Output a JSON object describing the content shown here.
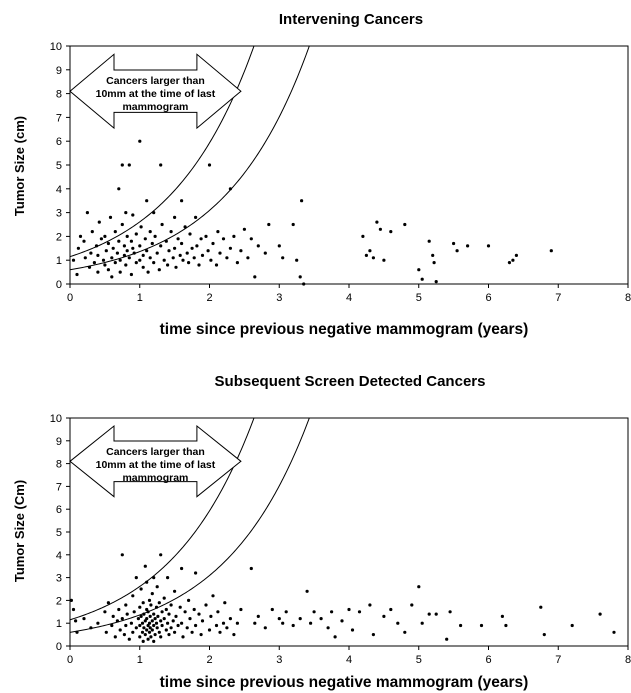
{
  "chart_data": [
    {
      "type": "scatter",
      "title": "Intervening Cancers",
      "xlabel": "time since previous negative mammogram (years)",
      "ylabel": "Tumor Size (cm)",
      "xlim": [
        0,
        8
      ],
      "ylim": [
        0,
        10
      ],
      "xticks": [
        "0",
        "1",
        "2",
        "3",
        "4",
        "5",
        "6",
        "7",
        "8"
      ],
      "yticks": [
        "0",
        "1",
        "2",
        "3",
        "4",
        "5",
        "6",
        "7",
        "8",
        "9",
        "10"
      ],
      "grid": false,
      "annotation": [
        "Cancers larger than",
        "10mm at the time of last",
        "mammogram"
      ],
      "annotation_range": [
        0,
        2.45
      ],
      "curves": [
        {
          "a": 1.15,
          "k": 0.82
        },
        {
          "a": 0.6,
          "k": 0.82
        }
      ],
      "points": [
        [
          0.05,
          1.0
        ],
        [
          0.1,
          0.4
        ],
        [
          0.12,
          1.5
        ],
        [
          0.15,
          2.0
        ],
        [
          0.2,
          1.8
        ],
        [
          0.22,
          1.1
        ],
        [
          0.25,
          3.0
        ],
        [
          0.28,
          0.7
        ],
        [
          0.3,
          1.3
        ],
        [
          0.32,
          2.2
        ],
        [
          0.35,
          0.9
        ],
        [
          0.38,
          1.6
        ],
        [
          0.4,
          1.2
        ],
        [
          0.4,
          0.5
        ],
        [
          0.42,
          2.6
        ],
        [
          0.45,
          1.9
        ],
        [
          0.48,
          1.0
        ],
        [
          0.5,
          0.8
        ],
        [
          0.5,
          2.0
        ],
        [
          0.52,
          1.4
        ],
        [
          0.55,
          0.6
        ],
        [
          0.55,
          1.7
        ],
        [
          0.58,
          2.8
        ],
        [
          0.6,
          1.1
        ],
        [
          0.6,
          0.3
        ],
        [
          0.62,
          1.5
        ],
        [
          0.65,
          2.2
        ],
        [
          0.65,
          0.9
        ],
        [
          0.68,
          1.3
        ],
        [
          0.7,
          4.0
        ],
        [
          0.7,
          1.8
        ],
        [
          0.72,
          0.5
        ],
        [
          0.72,
          1.0
        ],
        [
          0.75,
          5.0
        ],
        [
          0.75,
          2.5
        ],
        [
          0.78,
          1.6
        ],
        [
          0.78,
          1.2
        ],
        [
          0.8,
          3.0
        ],
        [
          0.8,
          0.8
        ],
        [
          0.82,
          2.0
        ],
        [
          0.82,
          1.4
        ],
        [
          0.85,
          5.0
        ],
        [
          0.85,
          1.1
        ],
        [
          0.88,
          1.8
        ],
        [
          0.88,
          0.4
        ],
        [
          0.9,
          2.9
        ],
        [
          0.9,
          1.5
        ],
        [
          0.92,
          1.3
        ],
        [
          0.95,
          0.9
        ],
        [
          0.95,
          2.1
        ],
        [
          1.0,
          6.0
        ],
        [
          1.0,
          1.6
        ],
        [
          1.0,
          1.0
        ],
        [
          1.02,
          2.4
        ],
        [
          1.05,
          0.7
        ],
        [
          1.05,
          1.2
        ],
        [
          1.08,
          1.9
        ],
        [
          1.1,
          3.5
        ],
        [
          1.1,
          1.4
        ],
        [
          1.12,
          0.5
        ],
        [
          1.15,
          2.2
        ],
        [
          1.15,
          1.1
        ],
        [
          1.18,
          1.7
        ],
        [
          1.2,
          3.0
        ],
        [
          1.2,
          0.9
        ],
        [
          1.22,
          2.0
        ],
        [
          1.25,
          1.3
        ],
        [
          1.28,
          0.6
        ],
        [
          1.3,
          5.0
        ],
        [
          1.3,
          1.6
        ],
        [
          1.32,
          2.5
        ],
        [
          1.35,
          1.0
        ],
        [
          1.38,
          1.8
        ],
        [
          1.4,
          0.8
        ],
        [
          1.42,
          1.4
        ],
        [
          1.45,
          2.2
        ],
        [
          1.48,
          1.1
        ],
        [
          1.5,
          2.8
        ],
        [
          1.5,
          1.5
        ],
        [
          1.52,
          0.7
        ],
        [
          1.55,
          1.9
        ],
        [
          1.58,
          1.2
        ],
        [
          1.6,
          3.5
        ],
        [
          1.6,
          1.7
        ],
        [
          1.62,
          1.0
        ],
        [
          1.65,
          2.4
        ],
        [
          1.68,
          1.3
        ],
        [
          1.7,
          0.9
        ],
        [
          1.72,
          2.1
        ],
        [
          1.75,
          1.5
        ],
        [
          1.78,
          1.1
        ],
        [
          1.8,
          2.8
        ],
        [
          1.82,
          1.6
        ],
        [
          1.85,
          0.8
        ],
        [
          1.88,
          1.9
        ],
        [
          1.9,
          1.2
        ],
        [
          1.95,
          2.0
        ],
        [
          1.98,
          1.4
        ],
        [
          2.0,
          5.0
        ],
        [
          2.02,
          1.0
        ],
        [
          2.05,
          1.7
        ],
        [
          2.1,
          0.8
        ],
        [
          2.12,
          2.2
        ],
        [
          2.15,
          1.3
        ],
        [
          2.2,
          1.9
        ],
        [
          2.25,
          1.1
        ],
        [
          2.3,
          4.0
        ],
        [
          2.3,
          1.5
        ],
        [
          2.35,
          2.0
        ],
        [
          2.4,
          0.9
        ],
        [
          2.45,
          1.4
        ],
        [
          2.5,
          2.3
        ],
        [
          2.55,
          1.1
        ],
        [
          2.6,
          1.9
        ],
        [
          2.65,
          0.3
        ],
        [
          2.7,
          1.6
        ],
        [
          2.8,
          1.3
        ],
        [
          2.85,
          2.5
        ],
        [
          3.0,
          1.6
        ],
        [
          3.05,
          1.1
        ],
        [
          3.2,
          2.5
        ],
        [
          3.25,
          1.0
        ],
        [
          3.3,
          0.3
        ],
        [
          3.32,
          3.5
        ],
        [
          3.35,
          0.0
        ],
        [
          4.2,
          2.0
        ],
        [
          4.25,
          1.2
        ],
        [
          4.3,
          1.4
        ],
        [
          4.35,
          1.1
        ],
        [
          4.4,
          2.6
        ],
        [
          4.45,
          2.3
        ],
        [
          4.5,
          1.0
        ],
        [
          4.6,
          2.2
        ],
        [
          4.8,
          2.5
        ],
        [
          5.0,
          0.6
        ],
        [
          5.05,
          0.2
        ],
        [
          5.15,
          1.8
        ],
        [
          5.2,
          1.2
        ],
        [
          5.22,
          0.9
        ],
        [
          5.25,
          0.1
        ],
        [
          5.5,
          1.7
        ],
        [
          5.55,
          1.4
        ],
        [
          5.7,
          1.6
        ],
        [
          6.0,
          1.6
        ],
        [
          6.3,
          0.9
        ],
        [
          6.35,
          1.0
        ],
        [
          6.4,
          1.2
        ],
        [
          6.9,
          1.4
        ]
      ]
    },
    {
      "type": "scatter",
      "title": "Subsequent Screen Detected Cancers",
      "xlabel": "time since previous negative mammogram (years)",
      "ylabel": "Tumor Size (Cm)",
      "xlim": [
        0,
        8
      ],
      "ylim": [
        0,
        10
      ],
      "xticks": [
        "0",
        "1",
        "2",
        "3",
        "4",
        "5",
        "6",
        "7",
        "8"
      ],
      "yticks": [
        "0",
        "1",
        "2",
        "3",
        "4",
        "5",
        "6",
        "7",
        "8",
        "9",
        "10"
      ],
      "grid": false,
      "annotation": [
        "Cancers larger than",
        "10mm at the time of last",
        "mammogram"
      ],
      "annotation_range": [
        0,
        2.45
      ],
      "curves": [
        {
          "a": 1.15,
          "k": 0.82
        },
        {
          "a": 0.6,
          "k": 0.82
        }
      ],
      "points": [
        [
          0.02,
          2.0
        ],
        [
          0.05,
          1.6
        ],
        [
          0.08,
          1.1
        ],
        [
          0.1,
          0.6
        ],
        [
          0.2,
          1.2
        ],
        [
          0.3,
          0.8
        ],
        [
          0.4,
          1.0
        ],
        [
          0.5,
          1.5
        ],
        [
          0.52,
          0.6
        ],
        [
          0.55,
          1.9
        ],
        [
          0.6,
          0.9
        ],
        [
          0.62,
          1.3
        ],
        [
          0.65,
          0.4
        ],
        [
          0.68,
          1.1
        ],
        [
          0.7,
          1.6
        ],
        [
          0.72,
          0.7
        ],
        [
          0.75,
          4.0
        ],
        [
          0.75,
          1.2
        ],
        [
          0.78,
          0.5
        ],
        [
          0.8,
          0.9
        ],
        [
          0.8,
          1.8
        ],
        [
          0.82,
          1.4
        ],
        [
          0.85,
          0.3
        ],
        [
          0.88,
          1.0
        ],
        [
          0.9,
          2.2
        ],
        [
          0.9,
          0.6
        ],
        [
          0.92,
          1.5
        ],
        [
          0.95,
          0.8
        ],
        [
          0.95,
          3.0
        ],
        [
          0.98,
          1.2
        ],
        [
          1.0,
          0.4
        ],
        [
          1.0,
          1.7
        ],
        [
          1.0,
          0.9
        ],
        [
          1.02,
          1.3
        ],
        [
          1.02,
          2.5
        ],
        [
          1.04,
          0.6
        ],
        [
          1.04,
          1.0
        ],
        [
          1.05,
          1.9
        ],
        [
          1.05,
          0.2
        ],
        [
          1.06,
          1.4
        ],
        [
          1.06,
          0.8
        ],
        [
          1.08,
          1.1
        ],
        [
          1.08,
          3.5
        ],
        [
          1.08,
          0.5
        ],
        [
          1.1,
          1.6
        ],
        [
          1.1,
          0.7
        ],
        [
          1.1,
          1.2
        ],
        [
          1.1,
          2.8
        ],
        [
          1.12,
          0.9
        ],
        [
          1.12,
          0.3
        ],
        [
          1.12,
          1.5
        ],
        [
          1.14,
          1.0
        ],
        [
          1.14,
          2.0
        ],
        [
          1.14,
          0.6
        ],
        [
          1.15,
          1.3
        ],
        [
          1.15,
          0.8
        ],
        [
          1.16,
          1.8
        ],
        [
          1.16,
          0.4
        ],
        [
          1.18,
          1.1
        ],
        [
          1.18,
          2.3
        ],
        [
          1.18,
          0.7
        ],
        [
          1.2,
          1.4
        ],
        [
          1.2,
          0.9
        ],
        [
          1.2,
          3.0
        ],
        [
          1.2,
          0.2
        ],
        [
          1.22,
          1.2
        ],
        [
          1.22,
          0.5
        ],
        [
          1.24,
          1.7
        ],
        [
          1.24,
          1.0
        ],
        [
          1.25,
          0.8
        ],
        [
          1.25,
          2.6
        ],
        [
          1.26,
          1.3
        ],
        [
          1.28,
          0.6
        ],
        [
          1.28,
          1.9
        ],
        [
          1.3,
          1.1
        ],
        [
          1.3,
          4.0
        ],
        [
          1.3,
          0.4
        ],
        [
          1.32,
          1.5
        ],
        [
          1.32,
          0.9
        ],
        [
          1.35,
          1.2
        ],
        [
          1.35,
          2.1
        ],
        [
          1.38,
          0.7
        ],
        [
          1.38,
          1.6
        ],
        [
          1.4,
          1.0
        ],
        [
          1.4,
          3.0
        ],
        [
          1.42,
          0.5
        ],
        [
          1.42,
          1.4
        ],
        [
          1.45,
          1.8
        ],
        [
          1.45,
          0.8
        ],
        [
          1.48,
          1.1
        ],
        [
          1.5,
          2.4
        ],
        [
          1.5,
          0.6
        ],
        [
          1.52,
          1.3
        ],
        [
          1.55,
          0.9
        ],
        [
          1.58,
          1.7
        ],
        [
          1.6,
          3.4
        ],
        [
          1.6,
          1.0
        ],
        [
          1.62,
          0.4
        ],
        [
          1.65,
          1.5
        ],
        [
          1.68,
          0.8
        ],
        [
          1.7,
          2.0
        ],
        [
          1.72,
          1.2
        ],
        [
          1.75,
          0.6
        ],
        [
          1.78,
          1.6
        ],
        [
          1.8,
          3.2
        ],
        [
          1.8,
          0.9
        ],
        [
          1.85,
          1.4
        ],
        [
          1.88,
          0.5
        ],
        [
          1.9,
          1.1
        ],
        [
          1.95,
          1.8
        ],
        [
          2.0,
          0.7
        ],
        [
          2.02,
          1.3
        ],
        [
          2.05,
          2.2
        ],
        [
          2.1,
          0.9
        ],
        [
          2.12,
          1.5
        ],
        [
          2.15,
          0.6
        ],
        [
          2.2,
          1.0
        ],
        [
          2.22,
          1.9
        ],
        [
          2.25,
          0.8
        ],
        [
          2.3,
          1.2
        ],
        [
          2.35,
          0.5
        ],
        [
          2.4,
          1.0
        ],
        [
          2.45,
          1.6
        ],
        [
          2.6,
          3.4
        ],
        [
          2.65,
          1.0
        ],
        [
          2.7,
          1.3
        ],
        [
          2.8,
          0.8
        ],
        [
          2.9,
          1.6
        ],
        [
          3.0,
          1.2
        ],
        [
          3.05,
          1.0
        ],
        [
          3.1,
          1.5
        ],
        [
          3.2,
          0.9
        ],
        [
          3.3,
          1.2
        ],
        [
          3.4,
          2.4
        ],
        [
          3.45,
          1.0
        ],
        [
          3.5,
          1.5
        ],
        [
          3.6,
          1.2
        ],
        [
          3.7,
          0.8
        ],
        [
          3.75,
          1.5
        ],
        [
          3.8,
          0.4
        ],
        [
          3.9,
          1.1
        ],
        [
          4.0,
          1.6
        ],
        [
          4.05,
          0.7
        ],
        [
          4.15,
          1.5
        ],
        [
          4.3,
          1.8
        ],
        [
          4.35,
          0.5
        ],
        [
          4.5,
          1.3
        ],
        [
          4.6,
          1.6
        ],
        [
          4.7,
          1.0
        ],
        [
          4.8,
          0.6
        ],
        [
          4.9,
          1.8
        ],
        [
          5.0,
          2.6
        ],
        [
          5.05,
          1.0
        ],
        [
          5.15,
          1.4
        ],
        [
          5.25,
          1.4
        ],
        [
          5.4,
          0.3
        ],
        [
          5.45,
          1.5
        ],
        [
          5.6,
          0.9
        ],
        [
          5.9,
          0.9
        ],
        [
          6.2,
          1.3
        ],
        [
          6.25,
          0.9
        ],
        [
          6.75,
          1.7
        ],
        [
          6.8,
          0.5
        ],
        [
          7.2,
          0.9
        ],
        [
          7.6,
          1.4
        ],
        [
          7.8,
          0.6
        ]
      ]
    }
  ]
}
